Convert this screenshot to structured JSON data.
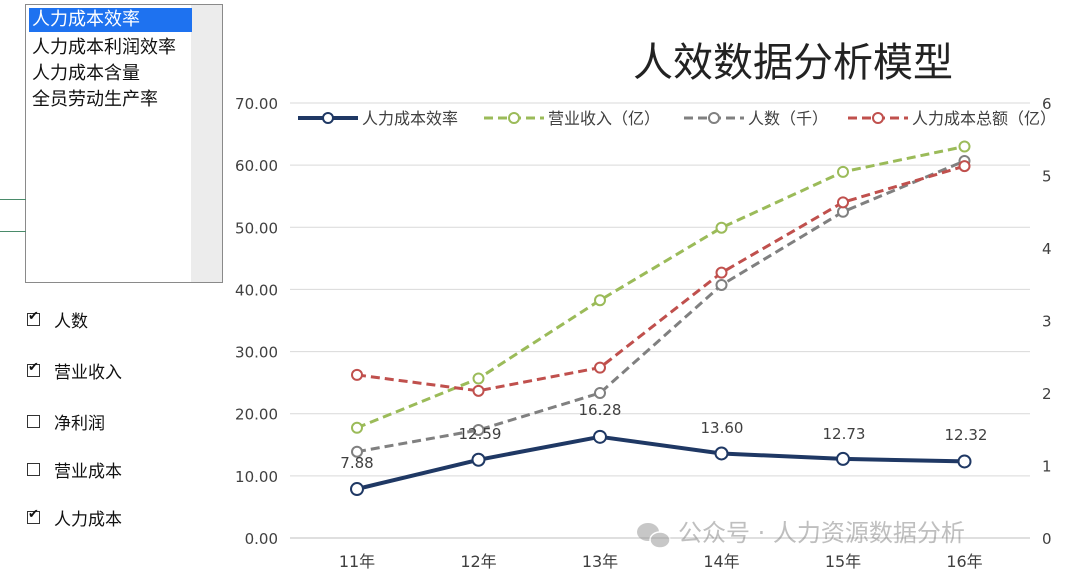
{
  "list_items": [
    "人力成本效率",
    "人力成本利润效率",
    "人力成本含量",
    "全员劳动生产率"
  ],
  "selected_index": 0,
  "checkboxes": [
    {
      "label": "人数",
      "checked": true
    },
    {
      "label": "营业收入",
      "checked": true
    },
    {
      "label": "净利润",
      "checked": false
    },
    {
      "label": "营业成本",
      "checked": false
    },
    {
      "label": "人力成本",
      "checked": true
    }
  ],
  "watermark": "公众号 · 人力资源数据分析",
  "chart_data": {
    "type": "line",
    "title": "人效数据分析模型",
    "categories": [
      "11年",
      "12年",
      "13年",
      "14年",
      "15年",
      "16年"
    ],
    "y_left": {
      "min": 0,
      "max": 70,
      "ticks": [
        "0.00",
        "10.00",
        "20.00",
        "30.00",
        "40.00",
        "50.00",
        "60.00",
        "70.00"
      ]
    },
    "y_right": {
      "min": 0,
      "max": 6,
      "ticks": [
        "0",
        "1",
        "2",
        "3",
        "4",
        "5",
        "6"
      ]
    },
    "grid": true,
    "legend_position": "top",
    "series": [
      {
        "name": "人力成本效率",
        "axis": "left",
        "values": [
          7.88,
          12.59,
          16.28,
          13.6,
          12.73,
          12.32
        ],
        "labels": [
          "7.88",
          "12.59",
          "16.28",
          "13.60",
          "12.73",
          "12.32"
        ],
        "color": "#1f3864",
        "style": "solid"
      },
      {
        "name": "营业收入（亿）",
        "axis": "right",
        "values": [
          1.52,
          2.2,
          3.28,
          4.28,
          5.05,
          5.4
        ],
        "color": "#9bbb59",
        "style": "dashed"
      },
      {
        "name": "人数（千）",
        "axis": "right",
        "values": [
          1.19,
          1.49,
          2.0,
          3.49,
          4.5,
          5.2
        ],
        "color": "#808080",
        "style": "dashed"
      },
      {
        "name": "人力成本总额（亿）",
        "axis": "right",
        "values": [
          2.25,
          2.03,
          2.35,
          3.66,
          4.63,
          5.13
        ],
        "color": "#c0504d",
        "style": "dashed"
      }
    ]
  }
}
